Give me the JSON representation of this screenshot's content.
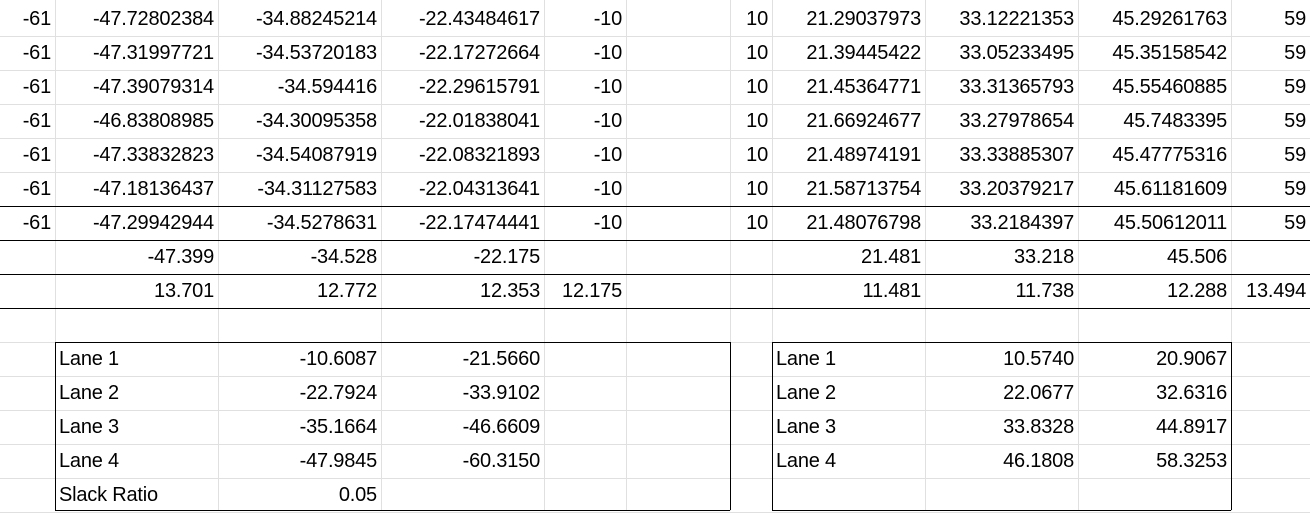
{
  "colors": {
    "grid": "#e0e0e0",
    "border": "#000000",
    "background": "#ffffff"
  },
  "data_rows": [
    [
      "-61",
      "-47.72802384",
      "-34.88245214",
      "-22.43484617",
      "-10",
      "",
      "10",
      "21.29037973",
      "33.12221353",
      "45.29261763",
      "59"
    ],
    [
      "-61",
      "-47.31997721",
      "-34.53720183",
      "-22.17272664",
      "-10",
      "",
      "10",
      "21.39445422",
      "33.05233495",
      "45.35158542",
      "59"
    ],
    [
      "-61",
      "-47.39079314",
      "-34.594416",
      "-22.29615791",
      "-10",
      "",
      "10",
      "21.45364771",
      "33.31365793",
      "45.55460885",
      "59"
    ],
    [
      "-61",
      "-46.83808985",
      "-34.30095358",
      "-22.01838041",
      "-10",
      "",
      "10",
      "21.66924677",
      "33.27978654",
      "45.7483395",
      "59"
    ],
    [
      "-61",
      "-47.33832823",
      "-34.54087919",
      "-22.08321893",
      "-10",
      "",
      "10",
      "21.48974191",
      "33.33885307",
      "45.47775316",
      "59"
    ],
    [
      "-61",
      "-47.18136437",
      "-34.31127583",
      "-22.04313641",
      "-10",
      "",
      "10",
      "21.58713754",
      "33.20379217",
      "45.61181609",
      "59"
    ],
    [
      "-61",
      "-47.29942944",
      "-34.5278631",
      "-22.17474441",
      "-10",
      "",
      "10",
      "21.48076798",
      "33.2184397",
      "45.50612011",
      "59"
    ]
  ],
  "summary_rows": [
    [
      "",
      "-47.399",
      "-34.528",
      "-22.175",
      "",
      "",
      "",
      "21.481",
      "33.218",
      "45.506",
      ""
    ],
    [
      "",
      "13.701",
      "12.772",
      "12.353",
      "12.175",
      "",
      "",
      "11.481",
      "11.738",
      "12.288",
      "13.494"
    ]
  ],
  "lane_table_left": [
    {
      "label": "Lane 1",
      "a": "-10.6087",
      "b": "-21.5660"
    },
    {
      "label": "Lane 2",
      "a": "-22.7924",
      "b": "-33.9102"
    },
    {
      "label": "Lane 3",
      "a": "-35.1664",
      "b": "-46.6609"
    },
    {
      "label": "Lane 4",
      "a": "-47.9845",
      "b": "-60.3150"
    },
    {
      "label": "Slack Ratio",
      "a": "0.05",
      "b": ""
    }
  ],
  "lane_table_right": [
    {
      "label": "Lane 1",
      "a": "10.5740",
      "b": "20.9067"
    },
    {
      "label": "Lane 2",
      "a": "22.0677",
      "b": "32.6316"
    },
    {
      "label": "Lane 3",
      "a": "33.8328",
      "b": "44.8917"
    },
    {
      "label": "Lane 4",
      "a": "46.1808",
      "b": "58.3253"
    }
  ]
}
